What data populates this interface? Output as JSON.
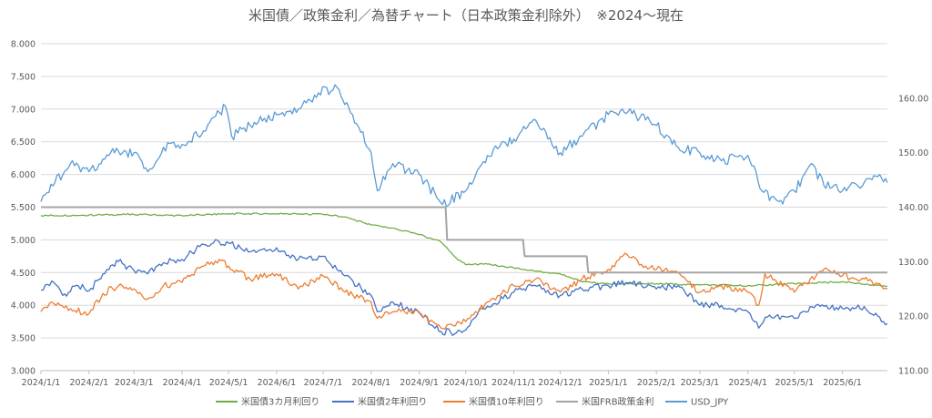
{
  "chart_data": {
    "type": "line",
    "title": "米国債／政策金利／為替チャート（日本政策金利除外）　※2024～現在",
    "x_tick_labels": [
      "2024/1/1",
      "2024/2/1",
      "2024/3/1",
      "2024/4/1",
      "2024/5/1",
      "2024/6/1",
      "2024/7/1",
      "2024/8/1",
      "2024/9/1",
      "2024/10/1",
      "2024/11/1",
      "2024/12/1",
      "2025/1/1",
      "2025/2/1",
      "2025/3/1",
      "2025/4/1",
      "2025/5/1",
      "2025/6/1"
    ],
    "x_range": [
      "2024-01-01",
      "2025-06-30"
    ],
    "y_left": {
      "min": 3.0,
      "max": 8.0,
      "step": 0.5,
      "tick_labels": [
        "3.000",
        "3.500",
        "4.000",
        "4.500",
        "5.000",
        "5.500",
        "6.000",
        "6.500",
        "7.000",
        "7.500",
        "8.000"
      ]
    },
    "y_right": {
      "min": 110,
      "max": 170,
      "step": 10,
      "tick_labels": [
        "110.00",
        "120.00",
        "130.00",
        "140.00",
        "150.00",
        "160.00"
      ]
    },
    "grid": "horizontal",
    "legend_position": "bottom",
    "series": [
      {
        "name": "米国債3カ月利回り",
        "axis": "left",
        "color": "#70ad47",
        "points": [
          [
            "2024-01-01",
            5.37
          ],
          [
            "2024-02-01",
            5.38
          ],
          [
            "2024-03-01",
            5.39
          ],
          [
            "2024-04-01",
            5.37
          ],
          [
            "2024-05-01",
            5.4
          ],
          [
            "2024-06-01",
            5.4
          ],
          [
            "2024-07-01",
            5.39
          ],
          [
            "2024-07-15",
            5.35
          ],
          [
            "2024-08-01",
            5.23
          ],
          [
            "2024-08-15",
            5.18
          ],
          [
            "2024-09-01",
            5.08
          ],
          [
            "2024-09-15",
            4.97
          ],
          [
            "2024-09-25",
            4.72
          ],
          [
            "2024-10-01",
            4.62
          ],
          [
            "2024-10-15",
            4.63
          ],
          [
            "2024-11-01",
            4.57
          ],
          [
            "2024-11-15",
            4.52
          ],
          [
            "2024-12-01",
            4.48
          ],
          [
            "2024-12-15",
            4.36
          ],
          [
            "2025-01-01",
            4.33
          ],
          [
            "2025-02-01",
            4.33
          ],
          [
            "2025-03-01",
            4.31
          ],
          [
            "2025-04-01",
            4.3
          ],
          [
            "2025-05-01",
            4.33
          ],
          [
            "2025-06-01",
            4.36
          ],
          [
            "2025-06-30",
            4.29
          ]
        ]
      },
      {
        "name": "米国債2年利回り",
        "axis": "left",
        "color": "#4472c4",
        "points": [
          [
            "2024-01-01",
            4.23
          ],
          [
            "2024-01-08",
            4.37
          ],
          [
            "2024-01-15",
            4.15
          ],
          [
            "2024-01-25",
            4.3
          ],
          [
            "2024-02-01",
            4.22
          ],
          [
            "2024-02-10",
            4.48
          ],
          [
            "2024-02-20",
            4.67
          ],
          [
            "2024-03-01",
            4.53
          ],
          [
            "2024-03-10",
            4.48
          ],
          [
            "2024-03-20",
            4.65
          ],
          [
            "2024-04-01",
            4.7
          ],
          [
            "2024-04-15",
            4.93
          ],
          [
            "2024-04-25",
            4.97
          ],
          [
            "2024-05-01",
            4.95
          ],
          [
            "2024-05-10",
            4.85
          ],
          [
            "2024-05-20",
            4.83
          ],
          [
            "2024-06-01",
            4.88
          ],
          [
            "2024-06-15",
            4.7
          ],
          [
            "2024-07-01",
            4.75
          ],
          [
            "2024-07-15",
            4.45
          ],
          [
            "2024-08-01",
            4.15
          ],
          [
            "2024-08-05",
            3.9
          ],
          [
            "2024-08-15",
            4.05
          ],
          [
            "2024-09-01",
            3.88
          ],
          [
            "2024-09-15",
            3.6
          ],
          [
            "2024-09-25",
            3.58
          ],
          [
            "2024-10-01",
            3.62
          ],
          [
            "2024-10-10",
            3.95
          ],
          [
            "2024-10-25",
            4.1
          ],
          [
            "2024-11-01",
            4.2
          ],
          [
            "2024-11-15",
            4.3
          ],
          [
            "2024-12-01",
            4.15
          ],
          [
            "2024-12-15",
            4.25
          ],
          [
            "2025-01-01",
            4.3
          ],
          [
            "2025-01-15",
            4.35
          ],
          [
            "2025-02-01",
            4.25
          ],
          [
            "2025-02-15",
            4.3
          ],
          [
            "2025-03-01",
            4.0
          ],
          [
            "2025-03-15",
            4.0
          ],
          [
            "2025-04-01",
            3.9
          ],
          [
            "2025-04-08",
            3.65
          ],
          [
            "2025-04-15",
            3.85
          ],
          [
            "2025-05-01",
            3.8
          ],
          [
            "2025-05-15",
            4.0
          ],
          [
            "2025-06-01",
            3.95
          ],
          [
            "2025-06-15",
            3.98
          ],
          [
            "2025-06-30",
            3.72
          ]
        ]
      },
      {
        "name": "米国債10年利回り",
        "axis": "left",
        "color": "#ed7d31",
        "points": [
          [
            "2024-01-01",
            3.9
          ],
          [
            "2024-01-08",
            4.05
          ],
          [
            "2024-01-20",
            3.95
          ],
          [
            "2024-02-01",
            3.87
          ],
          [
            "2024-02-10",
            4.18
          ],
          [
            "2024-02-20",
            4.3
          ],
          [
            "2024-03-01",
            4.25
          ],
          [
            "2024-03-10",
            4.1
          ],
          [
            "2024-03-20",
            4.3
          ],
          [
            "2024-04-01",
            4.35
          ],
          [
            "2024-04-15",
            4.6
          ],
          [
            "2024-04-25",
            4.7
          ],
          [
            "2024-05-01",
            4.6
          ],
          [
            "2024-05-15",
            4.4
          ],
          [
            "2024-06-01",
            4.48
          ],
          [
            "2024-06-15",
            4.25
          ],
          [
            "2024-07-01",
            4.45
          ],
          [
            "2024-07-15",
            4.2
          ],
          [
            "2024-08-01",
            4.05
          ],
          [
            "2024-08-05",
            3.8
          ],
          [
            "2024-08-15",
            3.9
          ],
          [
            "2024-09-01",
            3.9
          ],
          [
            "2024-09-15",
            3.65
          ],
          [
            "2024-10-01",
            3.75
          ],
          [
            "2024-10-15",
            4.05
          ],
          [
            "2024-11-01",
            4.3
          ],
          [
            "2024-11-15",
            4.4
          ],
          [
            "2024-12-01",
            4.2
          ],
          [
            "2024-12-15",
            4.4
          ],
          [
            "2025-01-01",
            4.55
          ],
          [
            "2025-01-13",
            4.78
          ],
          [
            "2025-01-25",
            4.6
          ],
          [
            "2025-02-01",
            4.55
          ],
          [
            "2025-02-15",
            4.5
          ],
          [
            "2025-03-01",
            4.2
          ],
          [
            "2025-03-15",
            4.3
          ],
          [
            "2025-04-01",
            4.2
          ],
          [
            "2025-04-08",
            4.0
          ],
          [
            "2025-04-12",
            4.48
          ],
          [
            "2025-05-01",
            4.2
          ],
          [
            "2025-05-20",
            4.55
          ],
          [
            "2025-06-01",
            4.45
          ],
          [
            "2025-06-15",
            4.4
          ],
          [
            "2025-06-30",
            4.25
          ]
        ]
      },
      {
        "name": "米国FRB政策金利",
        "axis": "left",
        "color": "#a5a5a5",
        "points": [
          [
            "2024-01-01",
            5.5
          ],
          [
            "2024-09-18",
            5.5
          ],
          [
            "2024-09-19",
            5.0
          ],
          [
            "2024-11-07",
            5.0
          ],
          [
            "2024-11-08",
            4.75
          ],
          [
            "2024-12-18",
            4.75
          ],
          [
            "2024-12-19",
            4.5
          ],
          [
            "2025-06-30",
            4.5
          ]
        ]
      },
      {
        "name": "USD_JPY",
        "axis": "right",
        "color": "#5b9bd5",
        "points": [
          [
            "2024-01-01",
            141.0
          ],
          [
            "2024-01-10",
            144.5
          ],
          [
            "2024-01-20",
            148.0
          ],
          [
            "2024-02-01",
            146.5
          ],
          [
            "2024-02-15",
            150.0
          ],
          [
            "2024-03-01",
            150.0
          ],
          [
            "2024-03-10",
            146.5
          ],
          [
            "2024-03-20",
            151.0
          ],
          [
            "2024-04-01",
            151.5
          ],
          [
            "2024-04-15",
            154.0
          ],
          [
            "2024-04-29",
            158.5
          ],
          [
            "2024-05-03",
            153.0
          ],
          [
            "2024-05-15",
            155.0
          ],
          [
            "2024-06-01",
            157.0
          ],
          [
            "2024-06-15",
            158.0
          ],
          [
            "2024-06-28",
            161.0
          ],
          [
            "2024-07-10",
            162.0
          ],
          [
            "2024-07-20",
            157.0
          ],
          [
            "2024-08-01",
            150.0
          ],
          [
            "2024-08-05",
            143.0
          ],
          [
            "2024-08-15",
            148.0
          ],
          [
            "2024-09-01",
            146.0
          ],
          [
            "2024-09-16",
            140.5
          ],
          [
            "2024-10-01",
            143.0
          ],
          [
            "2024-10-15",
            149.5
          ],
          [
            "2024-11-01",
            152.5
          ],
          [
            "2024-11-15",
            156.0
          ],
          [
            "2024-12-01",
            150.0
          ],
          [
            "2024-12-15",
            153.0
          ],
          [
            "2025-01-01",
            157.0
          ],
          [
            "2025-01-10",
            158.0
          ],
          [
            "2025-01-25",
            156.0
          ],
          [
            "2025-02-01",
            155.0
          ],
          [
            "2025-02-15",
            151.0
          ],
          [
            "2025-03-01",
            150.0
          ],
          [
            "2025-03-15",
            148.5
          ],
          [
            "2025-04-01",
            149.5
          ],
          [
            "2025-04-10",
            143.0
          ],
          [
            "2025-04-21",
            141.0
          ],
          [
            "2025-05-01",
            143.0
          ],
          [
            "2025-05-12",
            148.0
          ],
          [
            "2025-05-20",
            144.0
          ],
          [
            "2025-06-01",
            143.0
          ],
          [
            "2025-06-15",
            144.5
          ],
          [
            "2025-06-25",
            146.0
          ],
          [
            "2025-06-30",
            144.5
          ]
        ]
      }
    ]
  }
}
